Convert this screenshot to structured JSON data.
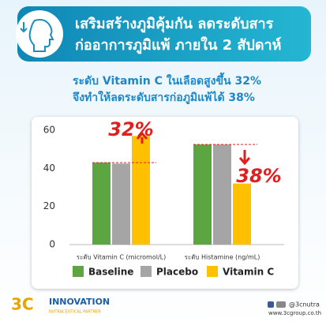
{
  "header": {
    "title_lines": [
      "เสริมสร้างภูมิคุ้มกัน ลดระดับสาร",
      "ก่ออาการภูมิแพ้ ภายใน 2 สัปดาห์"
    ]
  },
  "subtitle_lines": [
    "ระดับ Vitamin C ในเลือดสูงขึ้น 32%",
    "จึงทำให้ลดระดับสารก่อภูมิแพ้ได้ 38%"
  ],
  "chart_data": {
    "type": "bar",
    "categories": [
      "ระดับ Vitamin C (micromol/L)",
      "ระดับ Histamine (ng/mL)"
    ],
    "series": [
      {
        "name": "Baseline",
        "color": "#5ba640",
        "values": [
          43,
          52.5
        ]
      },
      {
        "name": "Placebo",
        "color": "#a5a5a5",
        "values": [
          42.5,
          52.5
        ]
      },
      {
        "name": "Vitamin C",
        "color": "#ffc000",
        "values": [
          57,
          32
        ]
      }
    ],
    "annotations": [
      "32%",
      "38%"
    ],
    "ylim": [
      0,
      60
    ],
    "yticks": [
      0,
      20,
      40,
      60
    ],
    "grid": false,
    "legend": "bottom"
  },
  "footer": {
    "brand": "3C",
    "company": "INNOVATION",
    "tagline": "NUTRACEUTICAL PARTNER",
    "social": "@3cnutra",
    "website": "www.3cgroup.co.th"
  }
}
